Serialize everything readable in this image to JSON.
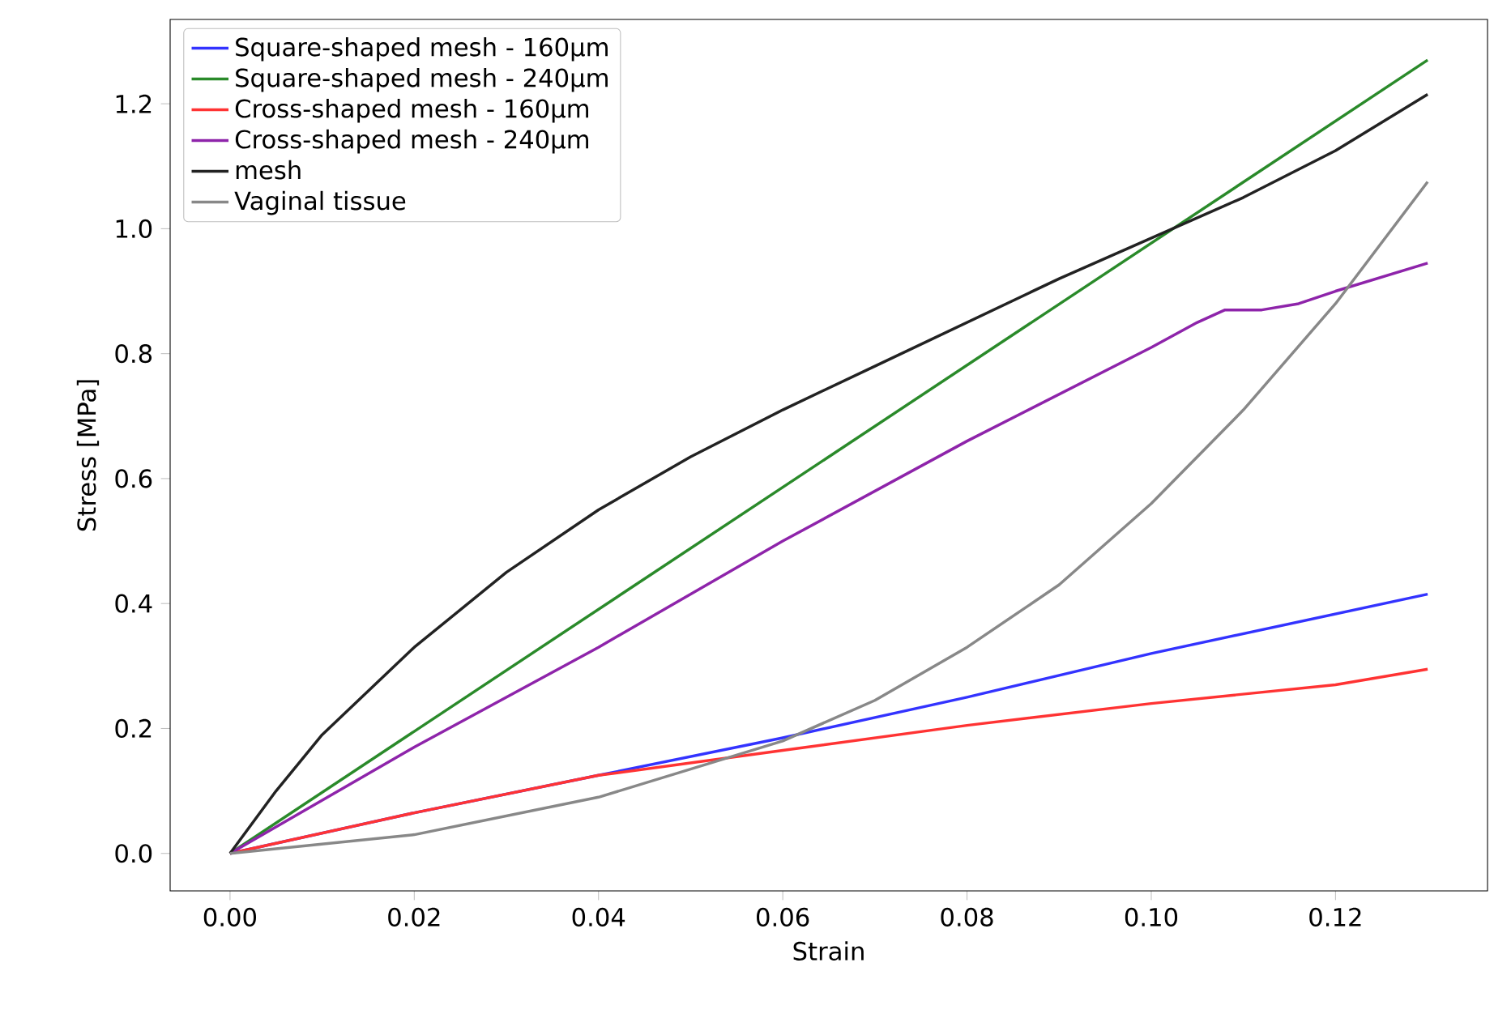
{
  "chart_data": {
    "type": "line",
    "xlabel": "Strain",
    "ylabel": "Stress [MPa]",
    "xlim": [
      -0.0065,
      0.1365
    ],
    "ylim": [
      -0.06,
      1.335
    ],
    "xticks": [
      {
        "value": 0,
        "label": "0.00"
      },
      {
        "value": 0.02,
        "label": "0.02"
      },
      {
        "value": 0.04,
        "label": "0.04"
      },
      {
        "value": 0.06,
        "label": "0.06"
      },
      {
        "value": 0.08,
        "label": "0.08"
      },
      {
        "value": 0.1,
        "label": "0.10"
      },
      {
        "value": 0.12,
        "label": "0.12"
      }
    ],
    "yticks": [
      {
        "value": 0,
        "label": "0.0"
      },
      {
        "value": 0.2,
        "label": "0.2"
      },
      {
        "value": 0.4,
        "label": "0.4"
      },
      {
        "value": 0.6,
        "label": "0.6"
      },
      {
        "value": 0.8,
        "label": "0.8"
      },
      {
        "value": 1.0,
        "label": "1.0"
      },
      {
        "value": 1.2,
        "label": "1.2"
      }
    ],
    "legend": "top left",
    "grid": false,
    "marker": "none",
    "line_style": "solid",
    "series": [
      {
        "name": "Square-shaped mesh - 160µm",
        "color": "#3333ff",
        "x": [
          0,
          0.02,
          0.04,
          0.06,
          0.08,
          0.1,
          0.13
        ],
        "values": [
          0,
          0.065,
          0.125,
          0.185,
          0.25,
          0.32,
          0.415
        ]
      },
      {
        "name": "Square-shaped mesh - 240µm",
        "color": "#2a8a2a",
        "x": [
          0,
          0.065,
          0.13
        ],
        "values": [
          0,
          0.635,
          1.27
        ]
      },
      {
        "name": "Cross-shaped mesh - 160µm",
        "color": "#ff3333",
        "x": [
          0,
          0.02,
          0.04,
          0.06,
          0.08,
          0.1,
          0.12,
          0.13
        ],
        "values": [
          0,
          0.065,
          0.125,
          0.165,
          0.205,
          0.24,
          0.27,
          0.295
        ]
      },
      {
        "name": "Cross-shaped mesh - 240µm",
        "color": "#8e24aa",
        "x": [
          0,
          0.02,
          0.04,
          0.06,
          0.08,
          0.1,
          0.105,
          0.108,
          0.112,
          0.116,
          0.12,
          0.13
        ],
        "values": [
          0,
          0.17,
          0.33,
          0.5,
          0.66,
          0.81,
          0.85,
          0.87,
          0.87,
          0.88,
          0.9,
          0.945
        ]
      },
      {
        "name": "mesh",
        "color": "#222222",
        "x": [
          0,
          0.005,
          0.01,
          0.02,
          0.03,
          0.04,
          0.05,
          0.06,
          0.07,
          0.08,
          0.09,
          0.1,
          0.11,
          0.12,
          0.13
        ],
        "values": [
          0,
          0.1,
          0.19,
          0.33,
          0.45,
          0.55,
          0.635,
          0.71,
          0.78,
          0.85,
          0.92,
          0.985,
          1.05,
          1.125,
          1.215
        ]
      },
      {
        "name": "Vaginal tissue",
        "color": "#888888",
        "x": [
          0,
          0.02,
          0.04,
          0.06,
          0.07,
          0.08,
          0.09,
          0.1,
          0.11,
          0.12,
          0.13
        ],
        "values": [
          0,
          0.03,
          0.09,
          0.18,
          0.245,
          0.33,
          0.43,
          0.56,
          0.71,
          0.88,
          1.075
        ]
      }
    ]
  }
}
